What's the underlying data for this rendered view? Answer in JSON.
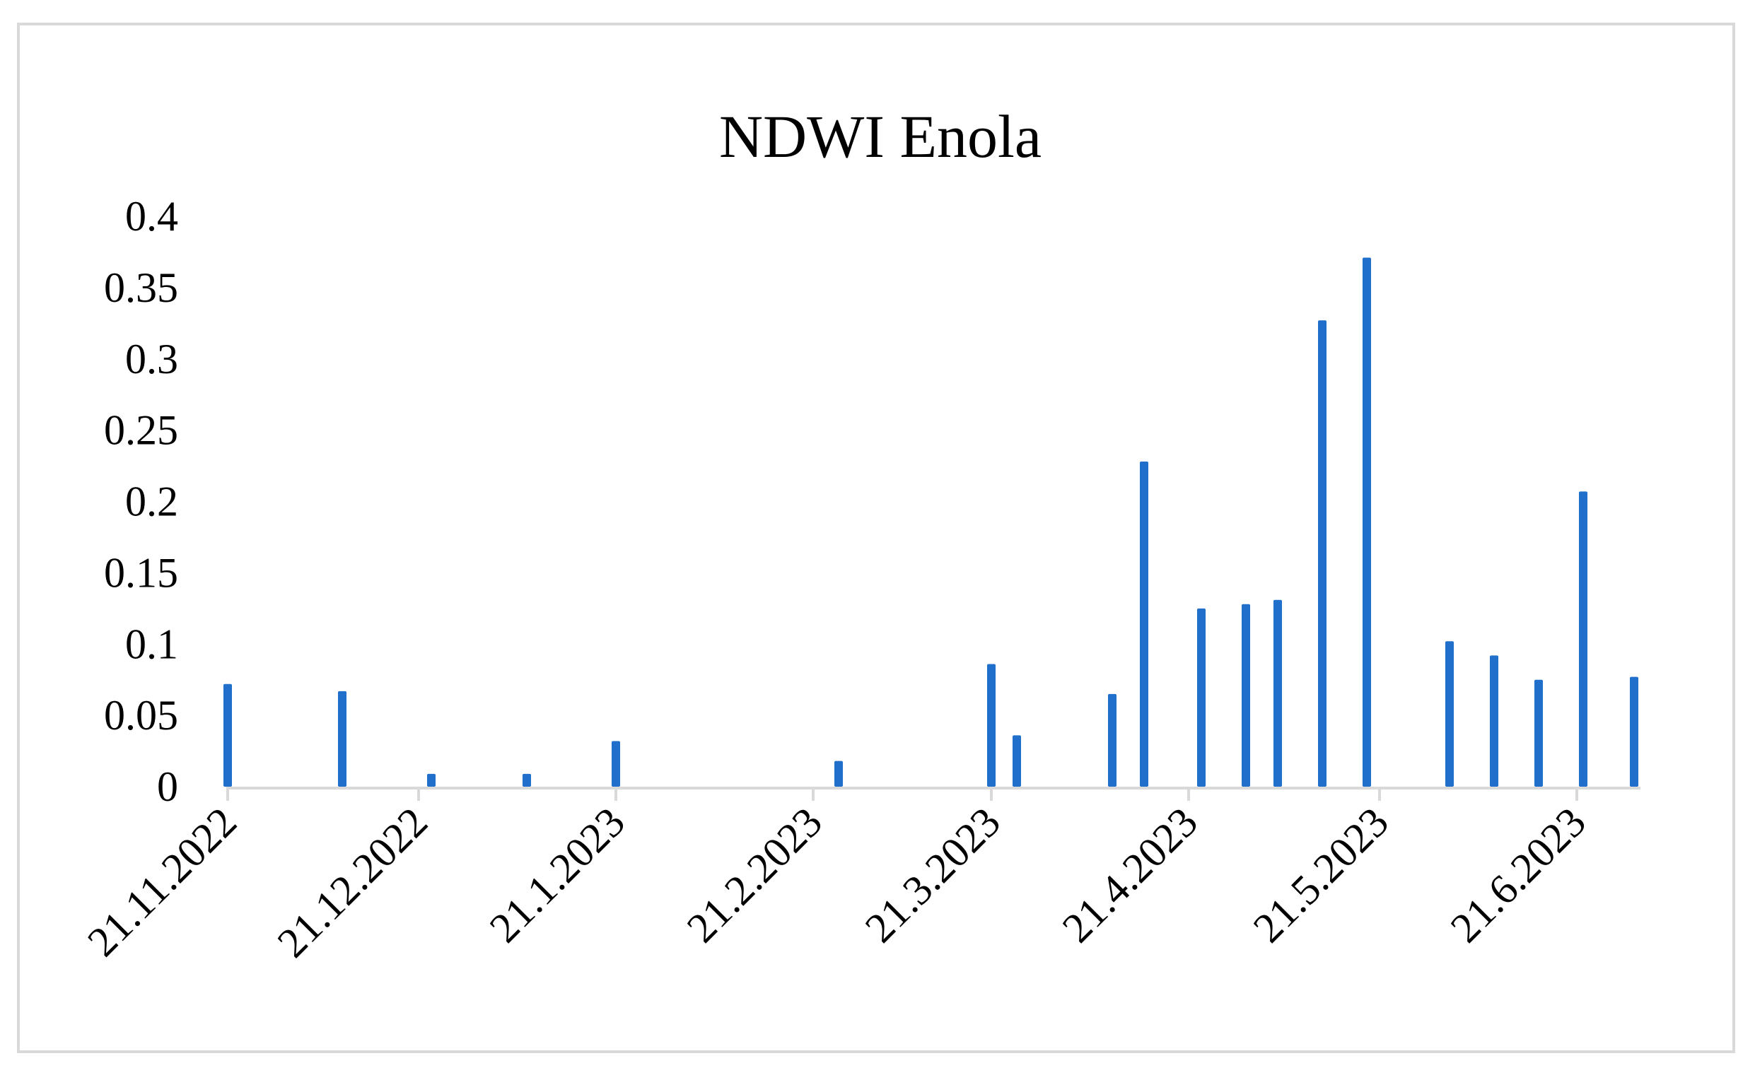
{
  "chart_data": {
    "type": "bar",
    "title": "NDWI Enola",
    "xlabel": "",
    "ylabel": "",
    "x_axis_type": "date",
    "xlim": [
      "2022-11-21",
      "2023-07-01"
    ],
    "ylim": [
      0,
      0.4
    ],
    "y_ticks": [
      "0",
      "0.05",
      "0.1",
      "0.15",
      "0.2",
      "0.25",
      "0.3",
      "0.35",
      "0.4"
    ],
    "x_ticks": [
      {
        "label": "21.11.2022",
        "date": "2022-11-21"
      },
      {
        "label": "21.12.2022",
        "date": "2022-12-21"
      },
      {
        "label": "21.1.2023",
        "date": "2023-01-21"
      },
      {
        "label": "21.2.2023",
        "date": "2023-02-21"
      },
      {
        "label": "21.3.2023",
        "date": "2023-03-21"
      },
      {
        "label": "21.4.2023",
        "date": "2023-04-21"
      },
      {
        "label": "21.5.2023",
        "date": "2023-05-21"
      },
      {
        "label": "21.6.2023",
        "date": "2023-06-21"
      }
    ],
    "grid": false,
    "legend": "none",
    "bar_color": "#1f6fcb",
    "axis_color": "#d9d9d9",
    "series": [
      {
        "x": [
          "2022-11-21",
          "2022-12-09",
          "2022-12-23",
          "2023-01-07",
          "2023-01-21",
          "2023-02-25",
          "2023-03-21",
          "2023-03-25",
          "2023-04-09",
          "2023-04-14",
          "2023-04-23",
          "2023-04-30",
          "2023-05-05",
          "2023-05-12",
          "2023-05-19",
          "2023-06-01",
          "2023-06-08",
          "2023-06-15",
          "2023-06-22",
          "2023-06-30"
        ],
        "values": [
          0.072,
          0.067,
          0.009,
          0.009,
          0.032,
          0.018,
          0.086,
          0.036,
          0.065,
          0.228,
          0.125,
          0.128,
          0.131,
          0.327,
          0.371,
          0.102,
          0.092,
          0.075,
          0.207,
          0.077
        ]
      }
    ]
  }
}
